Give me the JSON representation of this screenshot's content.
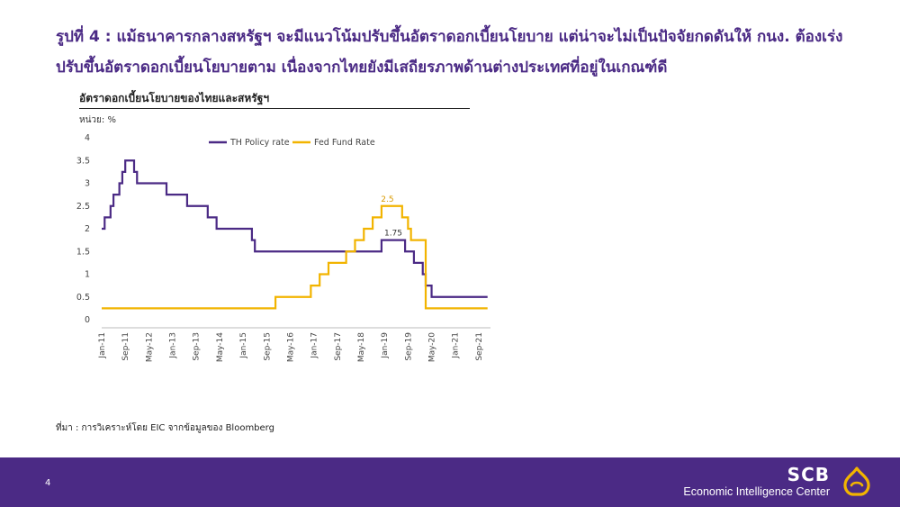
{
  "headline": {
    "line1": "รูปที่ 4 : แม้ธนาคารกลางสหรัฐฯ จะมีแนวโน้มปรับขึ้นอัตราดอกเบี้ยนโยบาย แต่น่าจะไม่เป็นปัจจัยกดดันให้ กนง. ต้องเร่ง",
    "line2": "ปรับขึ้นอัตราดอกเบี้ยนโยบายตาม เนื่องจากไทยยังมีเสถียรภาพด้านต่างประเทศที่อยู่ในเกณฑ์ดี"
  },
  "chart_title": "อัตราดอกเบี้ยนโยบายของไทยและสหรัฐฯ",
  "unit_label": "หน่วย: %",
  "source": "ที่มา : การวิเคราะห์โดย EIC จากข้อมูลของ Bloomberg",
  "page_number": "4",
  "brand": {
    "name": "SCB",
    "subtitle": "Economic Intelligence Center"
  },
  "colors": {
    "purple": "#4b2a85",
    "gold": "#f2b400",
    "footer": "#4b2a85"
  },
  "chart_data": {
    "type": "line",
    "xlabel": "",
    "ylabel": "",
    "ylim": [
      0,
      4
    ],
    "yticks": [
      "0",
      "0.5",
      "1",
      "1.5",
      "2",
      "2.5",
      "3",
      "3.5",
      "4"
    ],
    "x_tick_labels": [
      "Jan-11",
      "Sep-11",
      "May-12",
      "Jan-13",
      "Sep-13",
      "May-14",
      "Jan-15",
      "Sep-15",
      "May-16",
      "Jan-17",
      "Sep-17",
      "May-18",
      "Jan-19",
      "Sep-19",
      "May-20",
      "Jan-21",
      "Sep-21"
    ],
    "x_range": [
      "2011-01",
      "2021-12"
    ],
    "legend_position": "top-center",
    "grid": false,
    "series": [
      {
        "name": "TH Policy rate",
        "color": "#4b2a85",
        "points": [
          [
            "2011-01",
            2.0
          ],
          [
            "2011-02",
            2.25
          ],
          [
            "2011-04",
            2.5
          ],
          [
            "2011-05",
            2.75
          ],
          [
            "2011-07",
            3.0
          ],
          [
            "2011-08",
            3.25
          ],
          [
            "2011-09",
            3.5
          ],
          [
            "2011-12",
            3.25
          ],
          [
            "2012-01",
            3.0
          ],
          [
            "2012-11",
            2.75
          ],
          [
            "2013-06",
            2.5
          ],
          [
            "2014-01",
            2.25
          ],
          [
            "2014-04",
            2.0
          ],
          [
            "2015-04",
            1.75
          ],
          [
            "2015-05",
            1.5
          ],
          [
            "2018-12",
            1.75
          ],
          [
            "2019-08",
            1.5
          ],
          [
            "2019-11",
            1.25
          ],
          [
            "2020-02",
            1.0
          ],
          [
            "2020-03",
            0.75
          ],
          [
            "2020-05",
            0.5
          ],
          [
            "2021-12",
            0.5
          ]
        ],
        "annotations": [
          {
            "date": "2019-04",
            "value": 1.75,
            "label": "1.75"
          }
        ]
      },
      {
        "name": "Fed Fund Rate",
        "color": "#f2b400",
        "points": [
          [
            "2011-01",
            0.25
          ],
          [
            "2015-12",
            0.5
          ],
          [
            "2016-12",
            0.75
          ],
          [
            "2017-03",
            1.0
          ],
          [
            "2017-06",
            1.25
          ],
          [
            "2017-12",
            1.5
          ],
          [
            "2018-03",
            1.75
          ],
          [
            "2018-06",
            2.0
          ],
          [
            "2018-09",
            2.25
          ],
          [
            "2018-12",
            2.5
          ],
          [
            "2019-07",
            2.25
          ],
          [
            "2019-09",
            2.0
          ],
          [
            "2019-10",
            1.75
          ],
          [
            "2020-03",
            0.25
          ],
          [
            "2021-12",
            0.25
          ]
        ],
        "annotations": [
          {
            "date": "2019-02",
            "value": 2.5,
            "label": "2.5"
          }
        ]
      }
    ]
  }
}
